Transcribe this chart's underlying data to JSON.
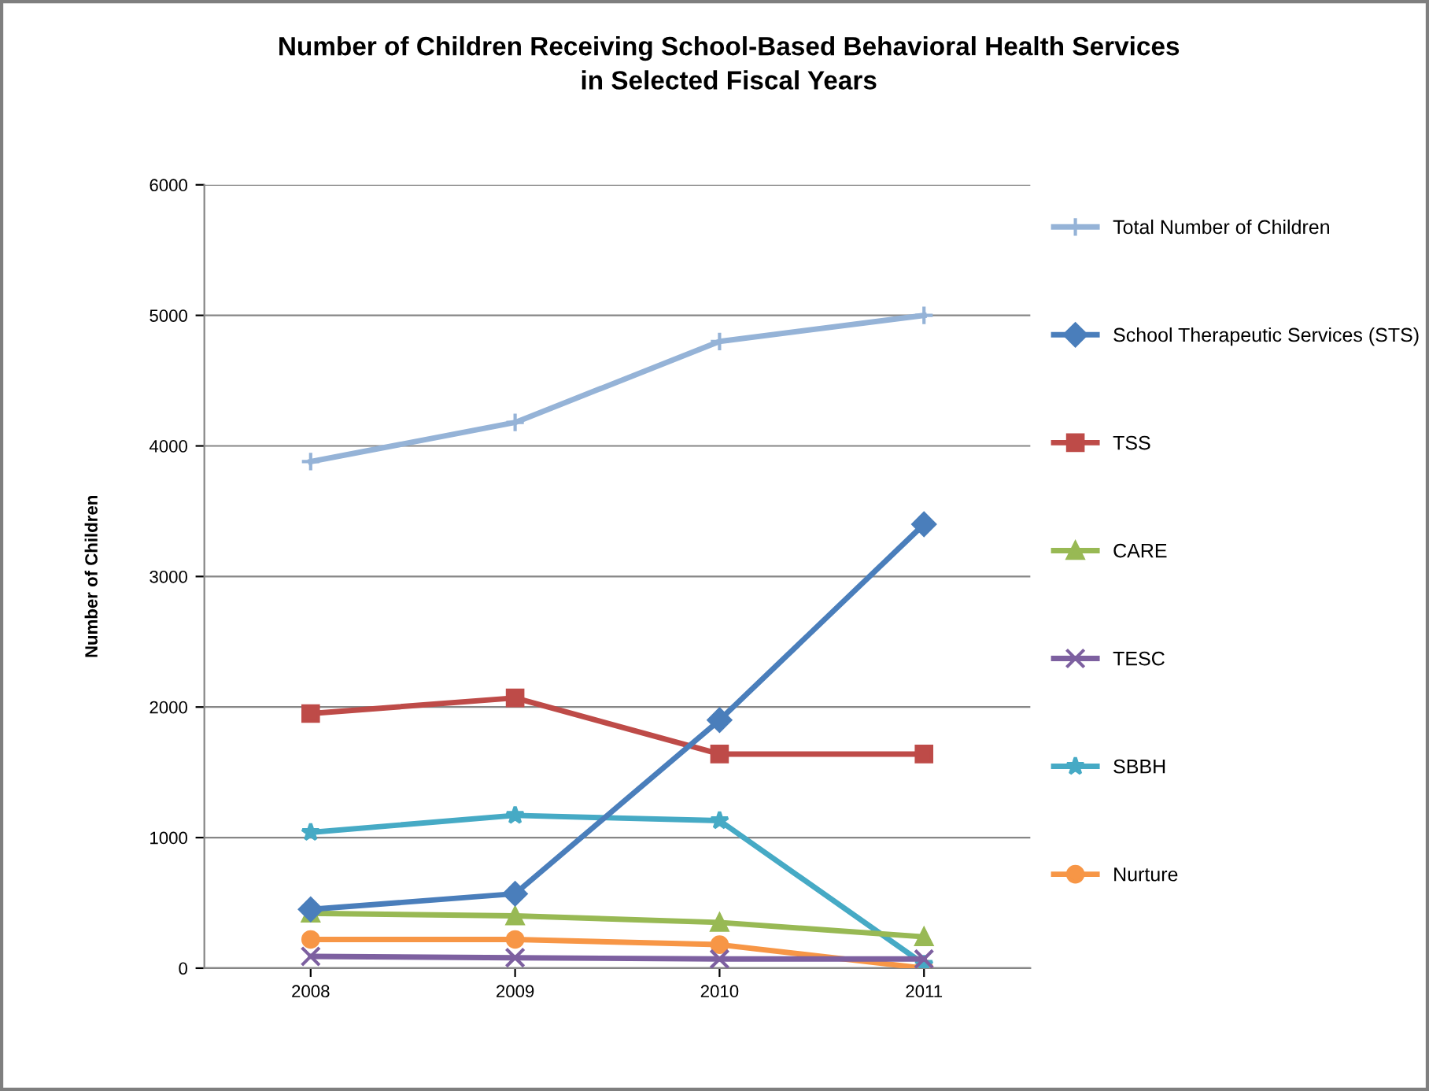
{
  "chart_data": {
    "type": "line",
    "title": "Number of Children Receiving School-Based Behavioral Health Services\nin Selected Fiscal Years",
    "ylabel": "Number of Children",
    "categories": [
      "2008",
      "2009",
      "2010",
      "2011"
    ],
    "series": [
      {
        "name": "Total Number of Children",
        "color": "#95b3d7",
        "marker": "plus",
        "values": [
          3880,
          4180,
          4800,
          5000
        ]
      },
      {
        "name": "School Therapeutic Services (STS)",
        "color": "#4a7ebb",
        "marker": "diamond",
        "values": [
          450,
          570,
          1900,
          3400
        ]
      },
      {
        "name": "TSS",
        "color": "#be4b48",
        "marker": "square",
        "values": [
          1950,
          2070,
          1640,
          1640
        ]
      },
      {
        "name": "CARE",
        "color": "#98b954",
        "marker": "triangle",
        "values": [
          420,
          400,
          350,
          240
        ]
      },
      {
        "name": "TESC",
        "color": "#7d60a0",
        "marker": "cross",
        "values": [
          90,
          80,
          70,
          70
        ]
      },
      {
        "name": "SBBH",
        "color": "#46aac5",
        "marker": "star",
        "values": [
          1040,
          1170,
          1130,
          30
        ]
      },
      {
        "name": "Nurture",
        "color": "#f79646",
        "marker": "circle",
        "values": [
          220,
          220,
          180,
          0
        ]
      }
    ],
    "ylim": [
      0,
      6000
    ],
    "yticks": [
      0,
      1000,
      2000,
      3000,
      4000,
      5000,
      6000
    ],
    "grid": "y",
    "legend": "right",
    "line_style": "solid"
  }
}
